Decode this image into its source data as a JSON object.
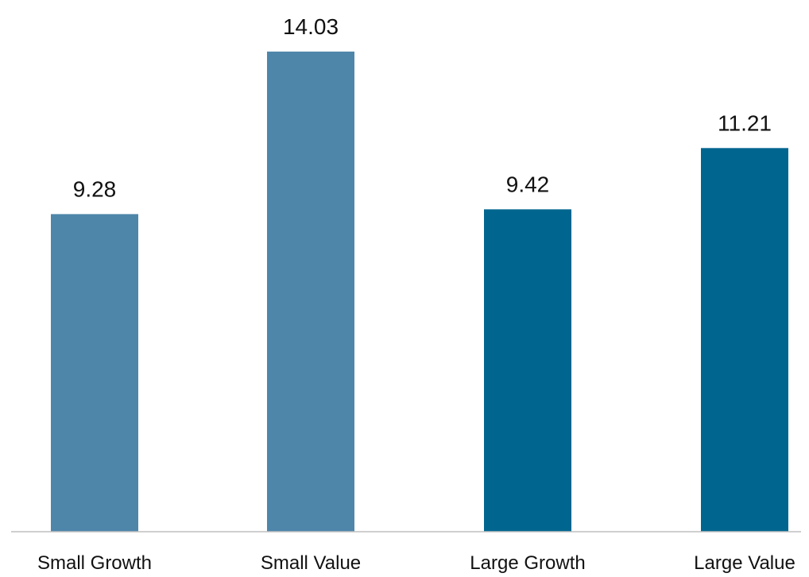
{
  "chart_data": {
    "type": "bar",
    "categories": [
      "Small Growth",
      "Small Value",
      "Large Growth",
      "Large Value"
    ],
    "values": [
      9.28,
      14.03,
      9.42,
      11.21
    ],
    "value_labels": [
      "9.28",
      "14.03",
      "9.42",
      "11.21"
    ],
    "bar_colors": [
      "#4e86aa",
      "#4e86aa",
      "#00668f",
      "#00668f"
    ],
    "axis_line_color": "#bfbfbf",
    "title": "",
    "xlabel": "",
    "ylabel": "",
    "ylim": [
      0,
      16
    ],
    "grid": false,
    "legend": "none"
  }
}
